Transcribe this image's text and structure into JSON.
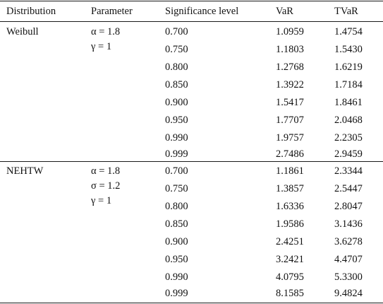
{
  "table": {
    "headers": [
      "Distribution",
      "Parameter",
      "Significance level",
      "VaR",
      "TVaR"
    ],
    "groups": [
      {
        "distribution": "Weibull",
        "parameters": [
          "α = 1.8",
          "γ = 1"
        ],
        "rows": [
          {
            "level": "0.700",
            "var": "1.0959",
            "tvar": "1.4754"
          },
          {
            "level": "0.750",
            "var": "1.1803",
            "tvar": "1.5430"
          },
          {
            "level": "0.800",
            "var": "1.2768",
            "tvar": "1.6219"
          },
          {
            "level": "0.850",
            "var": "1.3922",
            "tvar": "1.7184"
          },
          {
            "level": "0.900",
            "var": "1.5417",
            "tvar": "1.8461"
          },
          {
            "level": "0.950",
            "var": "1.7707",
            "tvar": "2.0468"
          },
          {
            "level": "0.990",
            "var": "1.9757",
            "tvar": "2.2305"
          },
          {
            "level": "0.999",
            "var": "2.7486",
            "tvar": "2.9459"
          }
        ]
      },
      {
        "distribution": "NEHTW",
        "parameters": [
          "α = 1.8",
          "σ = 1.2",
          "γ = 1"
        ],
        "rows": [
          {
            "level": "0.700",
            "var": "1.1861",
            "tvar": "2.3344"
          },
          {
            "level": "0.750",
            "var": "1.3857",
            "tvar": "2.5447"
          },
          {
            "level": "0.800",
            "var": "1.6336",
            "tvar": "2.8047"
          },
          {
            "level": "0.850",
            "var": "1.9586",
            "tvar": "3.1436"
          },
          {
            "level": "0.900",
            "var": "2.4251",
            "tvar": "3.6278"
          },
          {
            "level": "0.950",
            "var": "3.2421",
            "tvar": "4.4707"
          },
          {
            "level": "0.990",
            "var": "4.0795",
            "tvar": "5.3300"
          },
          {
            "level": "0.999",
            "var": "8.1585",
            "tvar": "9.4824"
          }
        ]
      }
    ]
  }
}
